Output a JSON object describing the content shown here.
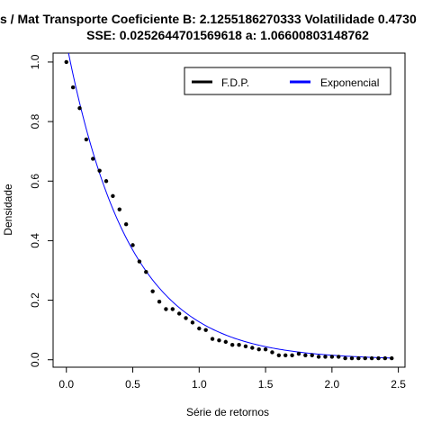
{
  "chart_data": {
    "type": "scatter",
    "title_line1": "s / Mat Transporte Coeficiente B:  2.1255186270333 Volatilidade 0.4730",
    "title_line2": "SSE: 0.0252644701569618  a:  1.06600803148762",
    "xlabel": "Série de retornos",
    "ylabel": "Densidade",
    "xlim": [
      -0.1,
      2.55
    ],
    "ylim": [
      -0.025,
      1.03
    ],
    "xticks": [
      0.0,
      0.5,
      1.0,
      1.5,
      2.0,
      2.5
    ],
    "xtick_labels": [
      "0.0",
      "0.5",
      "1.0",
      "1.5",
      "2.0",
      "2.5"
    ],
    "yticks": [
      0.0,
      0.2,
      0.4,
      0.6,
      0.8,
      1.0
    ],
    "ytick_labels": [
      "0.0",
      "0.2",
      "0.4",
      "0.6",
      "0.8",
      "1.0"
    ],
    "grid": false,
    "legend_position": "top-right",
    "series": [
      {
        "name": "F.D.P.",
        "kind": "points",
        "color": "#000000",
        "x": [
          0.0,
          0.05,
          0.1,
          0.15,
          0.2,
          0.25,
          0.3,
          0.35,
          0.4,
          0.45,
          0.5,
          0.55,
          0.6,
          0.65,
          0.7,
          0.75,
          0.8,
          0.85,
          0.9,
          0.95,
          1.0,
          1.05,
          1.1,
          1.15,
          1.2,
          1.25,
          1.3,
          1.35,
          1.4,
          1.45,
          1.5,
          1.55,
          1.6,
          1.65,
          1.7,
          1.75,
          1.8,
          1.85,
          1.9,
          1.95,
          2.0,
          2.05,
          2.1,
          2.15,
          2.2,
          2.25,
          2.3,
          2.35,
          2.4,
          2.45
        ],
        "y": [
          1.0,
          0.915,
          0.845,
          0.74,
          0.675,
          0.635,
          0.6,
          0.55,
          0.505,
          0.455,
          0.385,
          0.33,
          0.295,
          0.23,
          0.195,
          0.17,
          0.17,
          0.155,
          0.14,
          0.125,
          0.105,
          0.1,
          0.07,
          0.065,
          0.06,
          0.05,
          0.05,
          0.045,
          0.04,
          0.035,
          0.035,
          0.025,
          0.015,
          0.015,
          0.015,
          0.02,
          0.015,
          0.015,
          0.01,
          0.01,
          0.01,
          0.01,
          0.005,
          0.005,
          0.005,
          0.005,
          0.005,
          0.005,
          0.005,
          0.005
        ]
      },
      {
        "name": "Exponencial",
        "kind": "line",
        "color": "#0000ff",
        "function": "a*exp(-B*x)",
        "a": 1.06600803148762,
        "B": 2.1255186270333,
        "x_range": [
          0.0,
          2.45
        ]
      }
    ]
  }
}
